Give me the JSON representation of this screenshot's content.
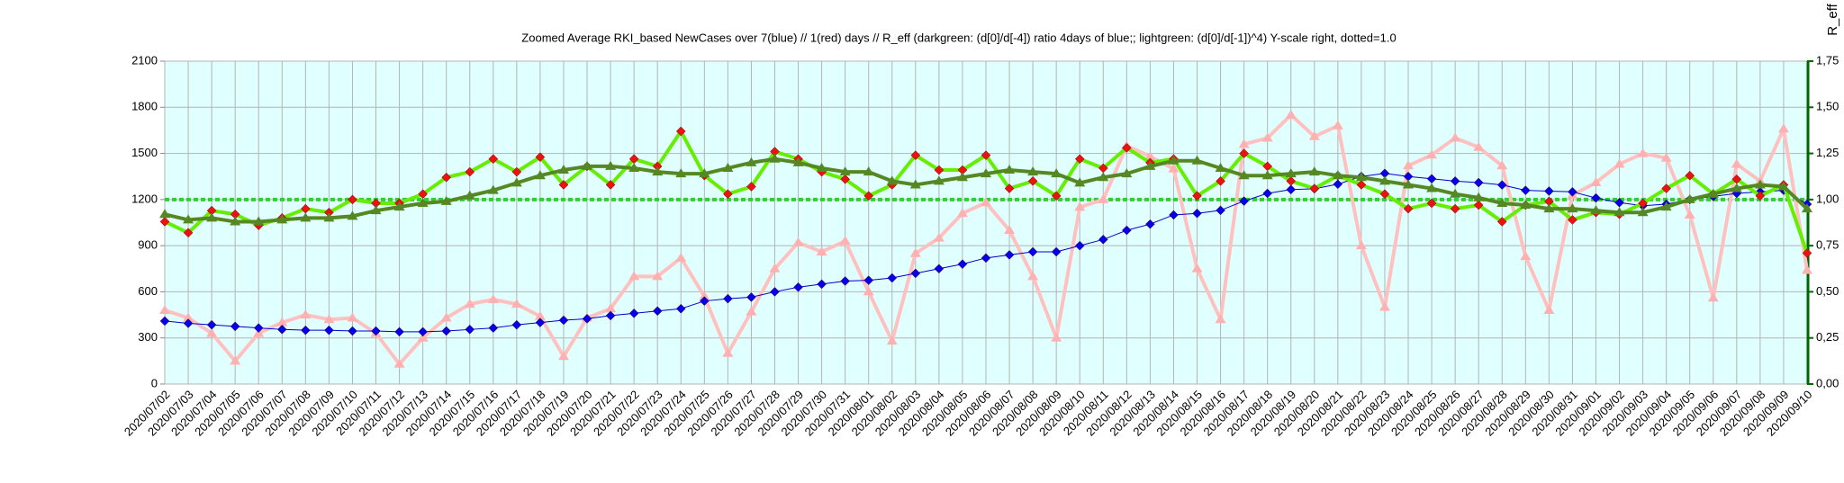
{
  "chart_data": {
    "type": "line",
    "title": "Zoomed Average RKI_based NewCases over 7(blue) // 1(red) days //  R_eff (darkgreen: (d[0]/d[-4]) ratio 4days of blue;; lightgreen: (d[0]/d[-1])^4) Y-scale right, dotted=1.0",
    "y2_label": "R_eff",
    "categories": [
      "2020/07/02",
      "2020/07/03",
      "2020/07/04",
      "2020/07/05",
      "2020/07/06",
      "2020/07/07",
      "2020/07/08",
      "2020/07/09",
      "2020/07/10",
      "2020/07/11",
      "2020/07/12",
      "2020/07/13",
      "2020/07/14",
      "2020/07/15",
      "2020/07/16",
      "2020/07/17",
      "2020/07/18",
      "2020/07/19",
      "2020/07/20",
      "2020/07/21",
      "2020/07/22",
      "2020/07/23",
      "2020/07/24",
      "2020/07/25",
      "2020/07/26",
      "2020/07/27",
      "2020/07/28",
      "2020/07/29",
      "2020/07/30",
      "2020/07/31",
      "2020/08/01",
      "2020/08/02",
      "2020/08/03",
      "2020/08/04",
      "2020/08/05",
      "2020/08/06",
      "2020/08/07",
      "2020/08/08",
      "2020/08/09",
      "2020/08/10",
      "2020/08/11",
      "2020/08/12",
      "2020/08/13",
      "2020/08/14",
      "2020/08/15",
      "2020/08/16",
      "2020/08/17",
      "2020/08/18",
      "2020/08/19",
      "2020/08/20",
      "2020/08/21",
      "2020/08/22",
      "2020/08/23",
      "2020/08/24",
      "2020/08/25",
      "2020/08/26",
      "2020/08/27",
      "2020/08/28",
      "2020/08/29",
      "2020/08/30",
      "2020/08/31",
      "2020/09/01",
      "2020/09/02",
      "2020/09/03",
      "2020/09/04",
      "2020/09/05",
      "2020/09/06",
      "2020/09/07",
      "2020/09/08",
      "2020/09/09",
      "2020/09/10"
    ],
    "ylim": [
      0,
      2100
    ],
    "yticks": [
      0,
      300,
      600,
      900,
      1200,
      1500,
      1800,
      2100
    ],
    "y2lim": [
      0,
      1.75
    ],
    "y2ticks": [
      {
        "value": 0,
        "label": "0,00"
      },
      {
        "value": 0.25,
        "label": "0,25"
      },
      {
        "value": 0.5,
        "label": "0,50"
      },
      {
        "value": 0.75,
        "label": "0,75"
      },
      {
        "value": 1,
        "label": "1,00"
      },
      {
        "value": 1.25,
        "label": "1,25"
      },
      {
        "value": 1.5,
        "label": "1,50"
      },
      {
        "value": 1.75,
        "label": "1,75"
      }
    ],
    "reference_line": {
      "value": 1,
      "axis": "y2",
      "color": "#33cc33"
    },
    "grid": true,
    "background": "#e0ffff",
    "series": [
      {
        "color": "#ffc0c0",
        "marker": "triangle",
        "marker_color": "#ffb0b0",
        "width": 4,
        "axis": "y",
        "values": [
          480,
          430,
          330,
          150,
          330,
          400,
          450,
          420,
          430,
          330,
          130,
          300,
          430,
          520,
          550,
          520,
          440,
          180,
          430,
          490,
          700,
          700,
          820,
          570,
          200,
          470,
          750,
          920,
          860,
          930,
          600,
          280,
          850,
          950,
          1110,
          1180,
          1000,
          700,
          300,
          1150,
          1200,
          1550,
          1480,
          1400,
          750,
          420,
          1560,
          1600,
          1750,
          1610,
          1680,
          900,
          500,
          1420,
          1490,
          1600,
          1540,
          1420,
          830,
          480,
          1230,
          1310,
          1430,
          1500,
          1470,
          1100,
          560,
          1430,
          1320,
          1660,
          740
        ]
      },
      {
        "color": "#0000cc",
        "marker": "diamond",
        "marker_color": "#0000ee",
        "width": 1,
        "axis": "y",
        "values": [
          410,
          395,
          385,
          375,
          365,
          355,
          350,
          350,
          345,
          345,
          340,
          340,
          345,
          355,
          365,
          385,
          400,
          415,
          425,
          445,
          460,
          475,
          490,
          540,
          555,
          565,
          600,
          630,
          650,
          670,
          675,
          690,
          720,
          750,
          780,
          820,
          840,
          860,
          860,
          900,
          940,
          1000,
          1040,
          1100,
          1110,
          1130,
          1190,
          1240,
          1265,
          1270,
          1300,
          1350,
          1370,
          1350,
          1335,
          1320,
          1310,
          1295,
          1260,
          1255,
          1250,
          1210,
          1180,
          1160,
          1170,
          1200,
          1220,
          1240,
          1250,
          1260,
          1170
        ]
      },
      {
        "color": "#66ee00",
        "marker": "diamond",
        "marker_color": "#ee1111",
        "width": 4,
        "axis": "y2",
        "values": [
          0.88,
          0.82,
          0.94,
          0.92,
          0.86,
          0.9,
          0.95,
          0.93,
          1.0,
          0.98,
          0.98,
          1.03,
          1.12,
          1.15,
          1.22,
          1.15,
          1.23,
          1.08,
          1.18,
          1.08,
          1.22,
          1.18,
          1.37,
          1.13,
          1.03,
          1.07,
          1.26,
          1.22,
          1.15,
          1.11,
          1.02,
          1.08,
          1.24,
          1.16,
          1.16,
          1.24,
          1.06,
          1.1,
          1.02,
          1.22,
          1.17,
          1.28,
          1.2,
          1.22,
          1.02,
          1.1,
          1.25,
          1.18,
          1.1,
          1.06,
          1.13,
          1.08,
          1.03,
          0.95,
          0.98,
          0.95,
          0.97,
          0.88,
          0.97,
          0.99,
          0.89,
          0.93,
          0.92,
          0.98,
          1.06,
          1.13,
          1.03,
          1.11,
          1.02,
          1.08,
          0.71
        ]
      },
      {
        "color": "#558822",
        "marker": "triangle",
        "marker_color": "#558822",
        "width": 4,
        "axis": "y2",
        "values": [
          0.92,
          0.89,
          0.9,
          0.88,
          0.88,
          0.89,
          0.9,
          0.9,
          0.91,
          0.94,
          0.96,
          0.98,
          0.99,
          1.02,
          1.05,
          1.09,
          1.13,
          1.16,
          1.18,
          1.18,
          1.17,
          1.15,
          1.14,
          1.14,
          1.17,
          1.2,
          1.22,
          1.2,
          1.17,
          1.15,
          1.15,
          1.1,
          1.08,
          1.1,
          1.12,
          1.14,
          1.16,
          1.15,
          1.14,
          1.09,
          1.12,
          1.14,
          1.18,
          1.21,
          1.21,
          1.17,
          1.13,
          1.13,
          1.14,
          1.15,
          1.13,
          1.12,
          1.1,
          1.08,
          1.06,
          1.03,
          1.01,
          0.98,
          0.97,
          0.95,
          0.95,
          0.94,
          0.93,
          0.93,
          0.96,
          1.0,
          1.03,
          1.06,
          1.08,
          1.07,
          0.95
        ]
      }
    ]
  }
}
